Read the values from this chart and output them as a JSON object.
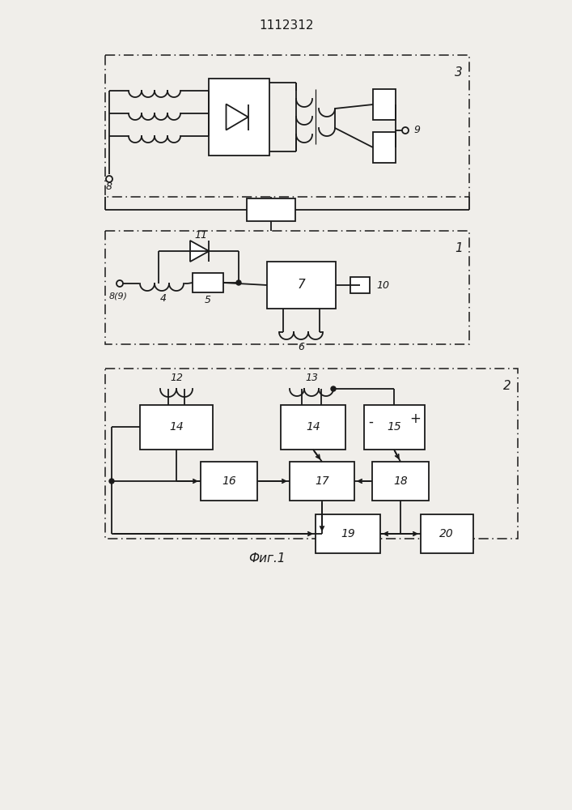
{
  "title": "1112312",
  "caption": "Фиг.1",
  "bg_color": "#f0eeea",
  "line_color": "#1a1a1a",
  "fig_width": 7.07,
  "fig_height": 10.0,
  "dpi": 100
}
